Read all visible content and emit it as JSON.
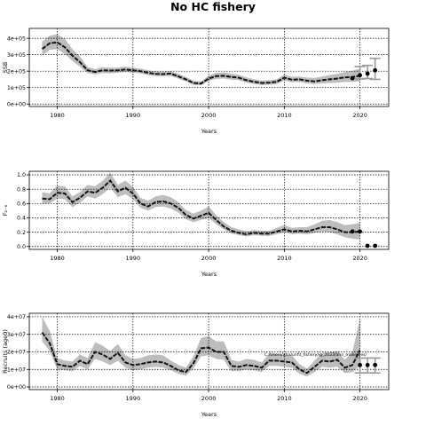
{
  "title": "No HC fishery",
  "colors": {
    "band": "#bdbdbd",
    "line": "#111111",
    "point": "#000000",
    "errorbar": "#9a9a9a",
    "grid": "#000000"
  },
  "chart_data": [
    {
      "id": "ssb",
      "type": "line",
      "ylabel": "SSB",
      "xlabel": "Years",
      "xlim": [
        1976.3,
        2023.8
      ],
      "ylim": [
        -15000,
        460000
      ],
      "xticks": [
        1980,
        1990,
        2000,
        2010,
        2020
      ],
      "xtick_labels": [
        "1980",
        "1990",
        "2000",
        "2010",
        "2020"
      ],
      "yticks": [
        0,
        100000,
        200000,
        300000,
        400000
      ],
      "ytick_labels": [
        "0e+00",
        "1e+05",
        "2e+05",
        "3e+05",
        "4e+05"
      ],
      "grid": true,
      "x": [
        1978,
        1979,
        1980,
        1981,
        1982,
        1983,
        1984,
        1985,
        1986,
        1987,
        1988,
        1989,
        1990,
        1991,
        1992,
        1993,
        1994,
        1995,
        1996,
        1997,
        1998,
        1999,
        2000,
        2001,
        2002,
        2003,
        2004,
        2005,
        2006,
        2007,
        2008,
        2009,
        2010,
        2011,
        2012,
        2013,
        2014,
        2015,
        2016,
        2017,
        2018,
        2019,
        2020
      ],
      "estimate": [
        335000,
        370000,
        375000,
        345000,
        295000,
        255000,
        205000,
        195000,
        205000,
        203000,
        205000,
        210000,
        205000,
        200000,
        190000,
        183000,
        182000,
        185000,
        168000,
        150000,
        128000,
        125000,
        155000,
        170000,
        172000,
        165000,
        160000,
        145000,
        135000,
        128000,
        130000,
        135000,
        160000,
        148000,
        150000,
        142000,
        138000,
        145000,
        150000,
        155000,
        162000,
        165000,
        172000
      ],
      "lower": [
        295000,
        330000,
        335000,
        305000,
        262000,
        228000,
        188000,
        180000,
        188000,
        187000,
        190000,
        195000,
        190000,
        186000,
        176000,
        170000,
        169000,
        171000,
        154000,
        138000,
        116000,
        113000,
        140000,
        153000,
        155000,
        148000,
        144000,
        130000,
        121000,
        115000,
        117000,
        121000,
        143000,
        132000,
        134000,
        126000,
        121000,
        126000,
        128000,
        130000,
        134000,
        135000,
        138000
      ],
      "upper": [
        380000,
        415000,
        425000,
        395000,
        335000,
        290000,
        225000,
        212000,
        224000,
        221000,
        222000,
        228000,
        222000,
        216000,
        205000,
        198000,
        197000,
        200000,
        183000,
        164000,
        141000,
        138000,
        172000,
        190000,
        192000,
        184000,
        178000,
        162000,
        150000,
        143000,
        145000,
        151000,
        180000,
        166000,
        168000,
        161000,
        158000,
        168000,
        176000,
        184000,
        195000,
        202000,
        215000
      ],
      "projection": [
        {
          "x": 2019,
          "y": 157000,
          "lo": null,
          "hi": null
        },
        {
          "x": 2020,
          "y": 175000,
          "lo": 152000,
          "hi": 228000
        },
        {
          "x": 2021,
          "y": 185000,
          "lo": 155000,
          "hi": 235000
        },
        {
          "x": 2022,
          "y": 205000,
          "lo": 150000,
          "hi": 278000
        }
      ]
    },
    {
      "id": "f",
      "type": "line",
      "ylabel": "F₂₋₆",
      "xlabel": "Years",
      "xlim": [
        1976.3,
        2023.8
      ],
      "ylim": [
        -0.04,
        1.05
      ],
      "xticks": [
        1980,
        1990,
        2000,
        2010,
        2020
      ],
      "xtick_labels": [
        "1980",
        "1990",
        "2000",
        "2010",
        "2020"
      ],
      "yticks": [
        0.0,
        0.2,
        0.4,
        0.6,
        0.8,
        1.0
      ],
      "ytick_labels": [
        "0.0",
        "0.2",
        "0.4",
        "0.6",
        "0.8",
        "1.0"
      ],
      "grid": true,
      "x": [
        1978,
        1979,
        1980,
        1981,
        1982,
        1983,
        1984,
        1985,
        1986,
        1987,
        1988,
        1989,
        1990,
        1991,
        1992,
        1993,
        1994,
        1995,
        1996,
        1997,
        1998,
        1999,
        2000,
        2001,
        2002,
        2003,
        2004,
        2005,
        2006,
        2007,
        2008,
        2009,
        2010,
        2011,
        2012,
        2013,
        2014,
        2015,
        2016,
        2017,
        2018,
        2019,
        2020
      ],
      "estimate": [
        0.67,
        0.66,
        0.75,
        0.74,
        0.62,
        0.68,
        0.77,
        0.75,
        0.82,
        0.92,
        0.77,
        0.82,
        0.74,
        0.6,
        0.56,
        0.62,
        0.63,
        0.6,
        0.54,
        0.44,
        0.39,
        0.43,
        0.47,
        0.37,
        0.28,
        0.22,
        0.19,
        0.17,
        0.19,
        0.18,
        0.18,
        0.21,
        0.24,
        0.21,
        0.22,
        0.21,
        0.24,
        0.27,
        0.27,
        0.24,
        0.2,
        0.2,
        0.21
      ],
      "lower": [
        0.6,
        0.6,
        0.67,
        0.66,
        0.55,
        0.61,
        0.7,
        0.67,
        0.73,
        0.82,
        0.69,
        0.73,
        0.66,
        0.54,
        0.5,
        0.55,
        0.56,
        0.53,
        0.47,
        0.38,
        0.34,
        0.37,
        0.4,
        0.31,
        0.24,
        0.18,
        0.16,
        0.14,
        0.16,
        0.15,
        0.15,
        0.17,
        0.2,
        0.17,
        0.18,
        0.17,
        0.19,
        0.21,
        0.2,
        0.17,
        0.13,
        0.11,
        0.1
      ],
      "upper": [
        0.76,
        0.74,
        0.85,
        0.84,
        0.7,
        0.76,
        0.86,
        0.84,
        0.92,
        1.03,
        0.86,
        0.92,
        0.83,
        0.68,
        0.64,
        0.7,
        0.72,
        0.69,
        0.62,
        0.51,
        0.46,
        0.5,
        0.56,
        0.44,
        0.34,
        0.27,
        0.24,
        0.21,
        0.23,
        0.22,
        0.22,
        0.26,
        0.3,
        0.26,
        0.27,
        0.27,
        0.31,
        0.36,
        0.37,
        0.34,
        0.3,
        0.31,
        0.33
      ],
      "projection": [
        {
          "x": 2019,
          "y": 0.21,
          "lo": null,
          "hi": null
        },
        {
          "x": 2020,
          "y": 0.21,
          "lo": null,
          "hi": null
        },
        {
          "x": 2021,
          "y": 0.01,
          "lo": null,
          "hi": null
        },
        {
          "x": 2022,
          "y": 0.01,
          "lo": null,
          "hi": null
        }
      ]
    },
    {
      "id": "rec",
      "type": "line",
      "ylabel": "Recruits (age0)",
      "xlabel": "Years",
      "xlim": [
        1976.3,
        2023.8
      ],
      "ylim": [
        -1500000,
        42000000
      ],
      "xticks": [
        1980,
        1990,
        2000,
        2010,
        2020
      ],
      "xtick_labels": [
        "1980",
        "1990",
        "2000",
        "2010",
        "2020"
      ],
      "yticks": [
        0,
        10000000,
        20000000,
        30000000,
        40000000
      ],
      "ytick_labels": [
        "0e+00",
        "1e+07",
        "2e+07",
        "3e+07",
        "4e+07"
      ],
      "grid": true,
      "x": [
        1978,
        1979,
        1980,
        1981,
        1982,
        1983,
        1984,
        1985,
        1986,
        1987,
        1988,
        1989,
        1990,
        1991,
        1992,
        1993,
        1994,
        1995,
        1996,
        1997,
        1998,
        1999,
        2000,
        2001,
        2002,
        2003,
        2004,
        2005,
        2006,
        2007,
        2008,
        2009,
        2010,
        2011,
        2012,
        2013,
        2014,
        2015,
        2016,
        2017,
        2018,
        2019,
        2020
      ],
      "estimate": [
        31000000,
        25000000,
        13000000,
        12000000,
        11500000,
        15000000,
        13000000,
        20000000,
        18500000,
        16000000,
        19500000,
        14000000,
        12500000,
        13000000,
        14000000,
        14500000,
        14000000,
        12000000,
        9500000,
        8500000,
        13500000,
        22000000,
        22500000,
        20000000,
        20000000,
        12000000,
        11500000,
        12500000,
        12000000,
        11000000,
        15000000,
        15000000,
        14500000,
        14000000,
        10000000,
        8000000,
        11500000,
        15000000,
        14500000,
        15500000,
        11000000,
        12500000,
        21000000
      ],
      "lower": [
        26000000,
        20500000,
        10000000,
        9500000,
        9000000,
        12000000,
        10000000,
        16000000,
        14500000,
        12500000,
        15000000,
        11000000,
        9500000,
        10000000,
        11000000,
        11500000,
        11000000,
        9500000,
        7500000,
        6500000,
        10500000,
        17500000,
        18000000,
        16000000,
        15500000,
        9000000,
        9000000,
        10000000,
        9500000,
        8500000,
        12000000,
        12000000,
        11500000,
        11000000,
        7500000,
        6000000,
        8500000,
        11500000,
        11000000,
        11500000,
        8000000,
        8500000,
        12000000
      ],
      "upper": [
        40000000,
        32000000,
        16500000,
        15000000,
        14500000,
        18500000,
        16500000,
        25500000,
        23500000,
        20500000,
        24500000,
        18000000,
        16000000,
        16500000,
        18000000,
        18500000,
        18000000,
        15000000,
        12500000,
        11000000,
        17500000,
        28000000,
        29000000,
        26000000,
        26000000,
        15500000,
        14500000,
        16000000,
        15500000,
        14000000,
        19000000,
        19000000,
        18500000,
        18000000,
        13000000,
        10500000,
        15000000,
        19500000,
        19500000,
        20500000,
        15500000,
        20000000,
        39000000
      ],
      "projection": [
        {
          "x": 2020,
          "y": 12500000,
          "lo": 8000000,
          "hi": 16500000
        },
        {
          "x": 2021,
          "y": 12500000,
          "lo": 8000000,
          "hi": 16500000
        },
        {
          "x": 2022,
          "y": 12500000,
          "lo": 8000000,
          "hi": 16500000
        }
      ],
      "annotation": "C:/Users/ahn/unfit_fishery/ig_2023/ahn_makefiles/"
    }
  ]
}
